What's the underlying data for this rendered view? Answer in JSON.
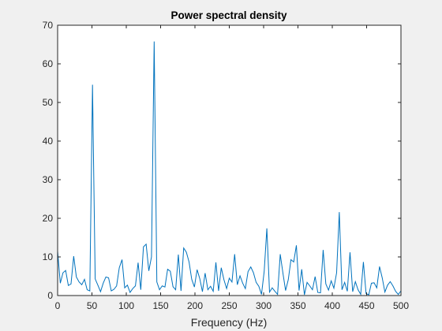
{
  "chart_data": {
    "type": "line",
    "title": "Power spectral density",
    "xlabel": "Frequency (Hz)",
    "ylabel": "",
    "xlim": [
      0,
      500
    ],
    "ylim": [
      0,
      70
    ],
    "xticks": [
      "0",
      "50",
      "100",
      "150",
      "200",
      "250",
      "300",
      "350",
      "400",
      "450",
      "500"
    ],
    "yticks": [
      "0",
      "10",
      "20",
      "30",
      "40",
      "50",
      "60",
      "70"
    ],
    "grid": false,
    "line_color": "#0072bd",
    "series": [
      {
        "x": [
          0,
          3.9,
          7.8,
          11.7,
          15.6,
          19.5,
          23.4,
          27.3,
          31.3,
          35.2,
          39.1,
          43.0,
          46.9,
          50.8,
          54.7,
          58.6,
          62.5,
          66.4,
          70.3,
          74.2,
          78.1,
          82.0,
          85.9,
          89.8,
          93.8,
          97.7,
          101.6,
          105.5,
          109.4,
          113.3,
          117.2,
          121.1,
          125.0,
          128.9,
          132.8,
          136.7,
          140.6,
          144.5,
          148.4,
          152.3,
          156.3,
          160.2,
          164.1,
          168.0,
          171.9,
          175.8,
          179.7,
          183.6,
          187.5,
          191.4,
          195.3,
          199.2,
          203.1,
          207.0,
          210.9,
          214.8,
          218.8,
          222.7,
          226.6,
          230.5,
          234.4,
          238.3,
          242.2,
          246.1,
          250.0,
          253.9,
          257.8,
          261.7,
          265.6,
          269.5,
          273.4,
          277.3,
          281.3,
          285.2,
          289.1,
          293.0,
          296.9,
          300.8,
          304.7,
          308.6,
          312.5,
          316.4,
          320.3,
          324.2,
          328.1,
          332.0,
          335.9,
          339.8,
          343.8,
          347.7,
          351.6,
          355.5,
          359.4,
          363.3,
          367.2,
          371.1,
          375.0,
          378.9,
          382.8,
          386.7,
          390.6,
          394.5,
          398.4,
          402.3,
          406.3,
          410.2,
          414.1,
          418.0,
          421.9,
          425.8,
          429.7,
          433.6,
          437.5,
          441.4,
          445.3,
          449.2,
          453.1,
          457.0,
          460.9,
          464.8,
          468.8,
          472.7,
          476.6,
          480.5,
          484.4,
          488.3,
          492.2,
          496.1,
          500.0
        ],
        "values": [
          11.5,
          3.2,
          5.9,
          6.5,
          2.6,
          3.0,
          10.2,
          4.8,
          3.5,
          2.8,
          4.2,
          1.5,
          1.2,
          54.6,
          4.3,
          2.7,
          1.0,
          3.2,
          4.8,
          4.6,
          1.2,
          1.6,
          2.5,
          7.2,
          9.3,
          2.0,
          2.7,
          0.8,
          1.8,
          2.5,
          8.5,
          1.5,
          12.6,
          13.3,
          6.4,
          10.0,
          65.8,
          3.5,
          1.5,
          2.5,
          2.2,
          6.8,
          6.3,
          2.3,
          1.5,
          10.6,
          1.2,
          12.3,
          11.2,
          8.7,
          4.2,
          2.2,
          6.7,
          4.4,
          1.0,
          5.8,
          1.5,
          2.4,
          1.1,
          8.6,
          1.2,
          7.2,
          4.1,
          1.8,
          4.5,
          3.5,
          10.7,
          2.8,
          5.1,
          3.2,
          1.8,
          6.2,
          7.4,
          5.9,
          3.4,
          2.4,
          0.3,
          6.2,
          17.4,
          0.9,
          2.0,
          1.1,
          0.3,
          10.7,
          5.8,
          1.3,
          4.1,
          9.3,
          8.7,
          13.0,
          1.3,
          6.8,
          0.2,
          3.4,
          2.5,
          1.5,
          4.9,
          0.8,
          0.7,
          11.8,
          3.0,
          1.4,
          3.8,
          1.9,
          5.9,
          21.6,
          1.5,
          3.4,
          1.1,
          11.2,
          1.0,
          3.6,
          1.5,
          0.3,
          8.7,
          0.5,
          0.2,
          3.2,
          3.3,
          2.0,
          7.5,
          4.6,
          0.9,
          2.7,
          3.6,
          2.5,
          1.1,
          0.3,
          1.2
        ]
      }
    ]
  }
}
